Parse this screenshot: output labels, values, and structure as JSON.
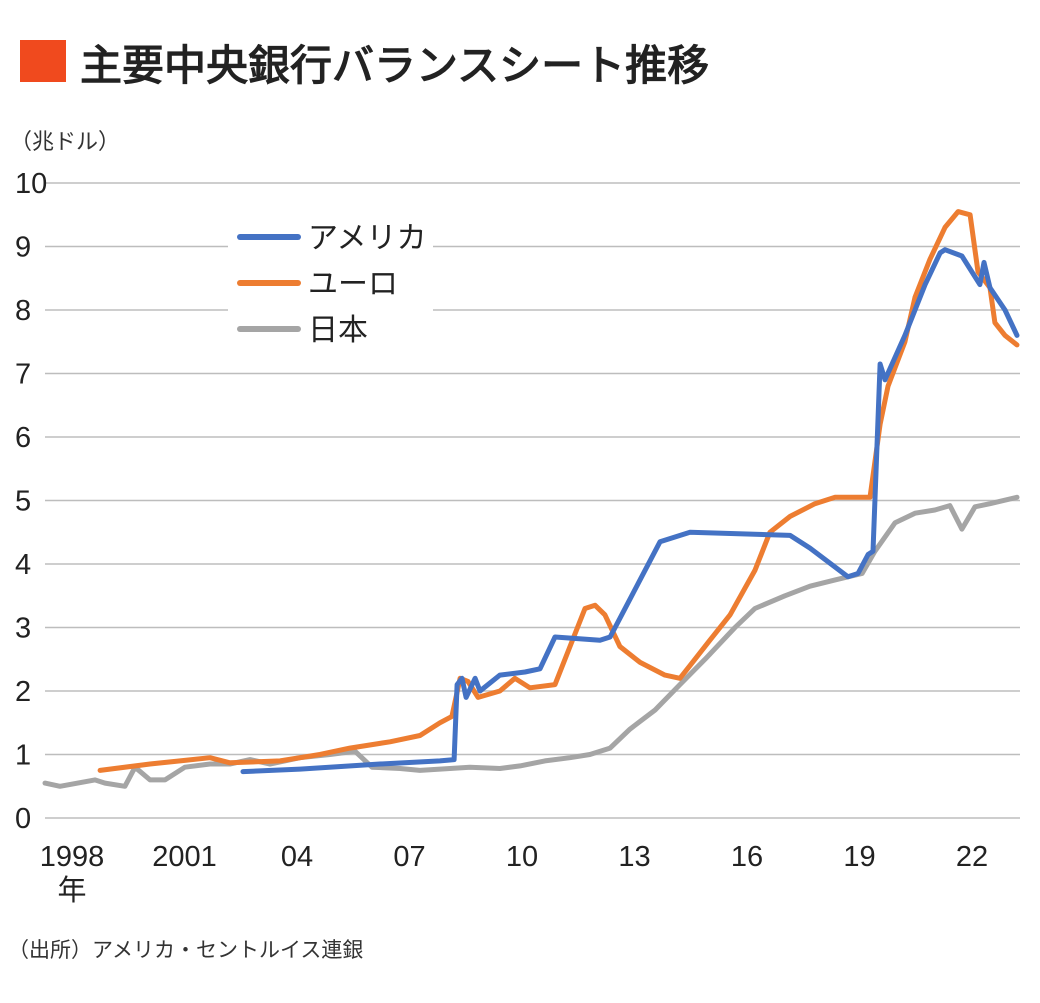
{
  "title": "主要中央銀行バランスシート推移",
  "unit_label": "（兆ドル）",
  "source": "（出所）アメリカ・セントルイス連銀",
  "colors": {
    "title_mark": "#F04A1E",
    "grid": "#BDBDBD"
  },
  "chart_data": {
    "type": "line",
    "title": "主要中央銀行バランスシート推移",
    "ylabel": "（兆ドル）",
    "xlabel": "年",
    "ylim": [
      0,
      10
    ],
    "xlim": [
      1997.2,
      2023.2
    ],
    "grid": true,
    "legend_position": "top-left",
    "yticks": [
      0,
      1,
      2,
      3,
      4,
      5,
      6,
      7,
      8,
      9,
      10
    ],
    "xticks": [
      {
        "value": 1998,
        "label": "1998"
      },
      {
        "value": 2001,
        "label": "2001"
      },
      {
        "value": 2004,
        "label": "04"
      },
      {
        "value": 2007,
        "label": "07"
      },
      {
        "value": 2010,
        "label": "10"
      },
      {
        "value": 2013,
        "label": "13"
      },
      {
        "value": 2016,
        "label": "16"
      },
      {
        "value": 2019,
        "label": "19"
      },
      {
        "value": 2022,
        "label": "22"
      }
    ],
    "x_unit_label": "年",
    "series": [
      {
        "name": "アメリカ",
        "color": "#4472C4",
        "points": [
          [
            2002.48,
            0.73
          ],
          [
            2004.0,
            0.77
          ],
          [
            2006.13,
            0.85
          ],
          [
            2007.73,
            0.9
          ],
          [
            2008.11,
            0.92
          ],
          [
            2008.19,
            2.1
          ],
          [
            2008.32,
            2.2
          ],
          [
            2008.43,
            1.9
          ],
          [
            2008.67,
            2.2
          ],
          [
            2008.8,
            2.0
          ],
          [
            2009.33,
            2.25
          ],
          [
            2010.0,
            2.3
          ],
          [
            2010.4,
            2.35
          ],
          [
            2010.8,
            2.85
          ],
          [
            2012.0,
            2.8
          ],
          [
            2012.27,
            2.85
          ],
          [
            2013.6,
            4.35
          ],
          [
            2014.4,
            4.5
          ],
          [
            2017.07,
            4.45
          ],
          [
            2017.6,
            4.25
          ],
          [
            2018.61,
            3.8
          ],
          [
            2018.88,
            3.85
          ],
          [
            2019.15,
            4.15
          ],
          [
            2019.28,
            4.2
          ],
          [
            2019.47,
            7.15
          ],
          [
            2019.6,
            6.9
          ],
          [
            2020.13,
            7.6
          ],
          [
            2020.67,
            8.4
          ],
          [
            2021.07,
            8.9
          ],
          [
            2021.2,
            8.95
          ],
          [
            2021.65,
            8.85
          ],
          [
            2022.13,
            8.4
          ],
          [
            2022.24,
            8.75
          ],
          [
            2022.4,
            8.35
          ],
          [
            2022.8,
            8.0
          ],
          [
            2023.12,
            7.6
          ]
        ]
      },
      {
        "name": "ユーロ",
        "color": "#ED7D31",
        "points": [
          [
            1998.67,
            0.75
          ],
          [
            2000.0,
            0.85
          ],
          [
            2000.8,
            0.9
          ],
          [
            2001.6,
            0.95
          ],
          [
            2002.13,
            0.87
          ],
          [
            2003.47,
            0.9
          ],
          [
            2004.53,
            1.0
          ],
          [
            2005.33,
            1.1
          ],
          [
            2006.4,
            1.2
          ],
          [
            2007.2,
            1.3
          ],
          [
            2007.73,
            1.5
          ],
          [
            2008.05,
            1.6
          ],
          [
            2008.27,
            2.2
          ],
          [
            2008.48,
            2.15
          ],
          [
            2008.75,
            1.9
          ],
          [
            2009.33,
            2.0
          ],
          [
            2009.73,
            2.2
          ],
          [
            2010.13,
            2.05
          ],
          [
            2010.8,
            2.1
          ],
          [
            2011.2,
            2.7
          ],
          [
            2011.6,
            3.3
          ],
          [
            2011.87,
            3.35
          ],
          [
            2012.13,
            3.2
          ],
          [
            2012.53,
            2.7
          ],
          [
            2013.07,
            2.45
          ],
          [
            2013.73,
            2.25
          ],
          [
            2014.13,
            2.2
          ],
          [
            2014.4,
            2.4
          ],
          [
            2014.93,
            2.8
          ],
          [
            2015.47,
            3.2
          ],
          [
            2016.13,
            3.9
          ],
          [
            2016.53,
            4.5
          ],
          [
            2017.07,
            4.75
          ],
          [
            2017.73,
            4.95
          ],
          [
            2018.27,
            5.05
          ],
          [
            2019.2,
            5.05
          ],
          [
            2019.47,
            6.2
          ],
          [
            2019.68,
            6.8
          ],
          [
            2020.13,
            7.5
          ],
          [
            2020.4,
            8.2
          ],
          [
            2020.8,
            8.8
          ],
          [
            2021.2,
            9.3
          ],
          [
            2021.55,
            9.55
          ],
          [
            2021.87,
            9.5
          ],
          [
            2022.08,
            8.6
          ],
          [
            2022.4,
            8.35
          ],
          [
            2022.53,
            7.8
          ],
          [
            2022.8,
            7.6
          ],
          [
            2023.12,
            7.45
          ]
        ]
      },
      {
        "name": "日本",
        "color": "#A5A5A5",
        "points": [
          [
            1997.2,
            0.55
          ],
          [
            1997.6,
            0.5
          ],
          [
            1998.53,
            0.6
          ],
          [
            1998.8,
            0.55
          ],
          [
            1999.33,
            0.5
          ],
          [
            1999.6,
            0.8
          ],
          [
            2000.0,
            0.6
          ],
          [
            2000.4,
            0.6
          ],
          [
            2000.93,
            0.8
          ],
          [
            2001.6,
            0.85
          ],
          [
            2002.13,
            0.85
          ],
          [
            2002.67,
            0.92
          ],
          [
            2003.2,
            0.85
          ],
          [
            2004.0,
            0.95
          ],
          [
            2004.8,
            1.0
          ],
          [
            2005.47,
            1.05
          ],
          [
            2005.92,
            0.8
          ],
          [
            2006.67,
            0.78
          ],
          [
            2007.2,
            0.75
          ],
          [
            2008.0,
            0.78
          ],
          [
            2008.53,
            0.8
          ],
          [
            2009.33,
            0.78
          ],
          [
            2009.87,
            0.82
          ],
          [
            2010.53,
            0.9
          ],
          [
            2011.2,
            0.95
          ],
          [
            2011.73,
            1.0
          ],
          [
            2012.27,
            1.1
          ],
          [
            2012.8,
            1.4
          ],
          [
            2013.47,
            1.7
          ],
          [
            2014.13,
            2.1
          ],
          [
            2014.8,
            2.5
          ],
          [
            2015.6,
            3.0
          ],
          [
            2016.13,
            3.3
          ],
          [
            2016.93,
            3.5
          ],
          [
            2017.6,
            3.65
          ],
          [
            2018.27,
            3.75
          ],
          [
            2018.99,
            3.85
          ],
          [
            2019.33,
            4.2
          ],
          [
            2019.87,
            4.65
          ],
          [
            2020.4,
            4.8
          ],
          [
            2020.93,
            4.85
          ],
          [
            2021.33,
            4.92
          ],
          [
            2021.65,
            4.55
          ],
          [
            2022.0,
            4.9
          ],
          [
            2022.4,
            4.95
          ],
          [
            2023.12,
            5.05
          ]
        ]
      }
    ]
  }
}
